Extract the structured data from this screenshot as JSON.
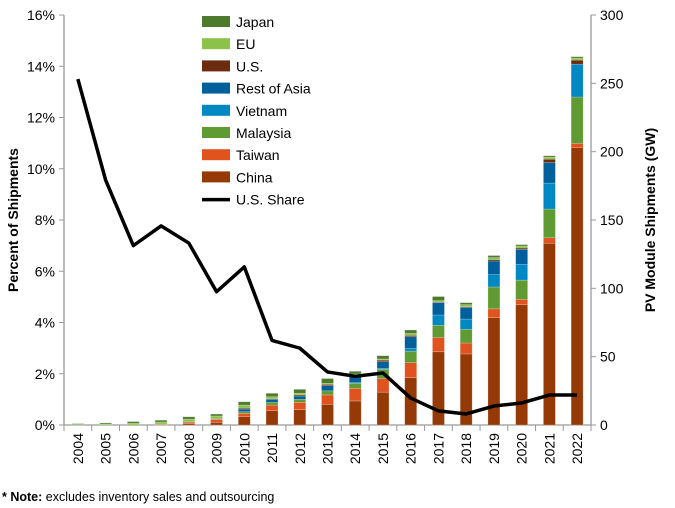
{
  "chart_data": {
    "type": "bar",
    "stacked": true,
    "categories": [
      "2004",
      "2005",
      "2006",
      "2007",
      "2008",
      "2009",
      "2010",
      "2011",
      "2012",
      "2013",
      "2014",
      "2015",
      "2016",
      "2017",
      "2018",
      "2019",
      "2020",
      "2021",
      "2022"
    ],
    "series": [
      {
        "name": "China",
        "axis": "right",
        "color": "#953A07",
        "values": [
          0,
          0,
          0,
          0.2,
          1,
          2,
          6.1,
          10.5,
          11.2,
          15.1,
          17.6,
          24,
          34.6,
          53.6,
          52,
          78.5,
          88,
          133,
          203
        ]
      },
      {
        "name": "Taiwan",
        "axis": "right",
        "color": "#E0531F",
        "values": [
          0,
          0,
          0,
          0.2,
          1,
          2,
          2.4,
          4.1,
          5.4,
          6.9,
          9.2,
          10,
          11,
          10.4,
          8,
          6.5,
          4,
          4,
          3
        ]
      },
      {
        "name": "Malaysia",
        "axis": "right",
        "color": "#5F9A33",
        "values": [
          0,
          0,
          0,
          0,
          0,
          0.5,
          1.2,
          2,
          2.2,
          3,
          3.7,
          6.7,
          8.4,
          9,
          10,
          16,
          14,
          21,
          34
        ]
      },
      {
        "name": "Vietnam",
        "axis": "right",
        "color": "#0088C3",
        "values": [
          0,
          0,
          0,
          0,
          0,
          0,
          0,
          0,
          0,
          0,
          0.5,
          0.8,
          2,
          7.5,
          7.5,
          9,
          11.5,
          19,
          24
        ]
      },
      {
        "name": "Rest of Asia",
        "axis": "right",
        "color": "#00609B",
        "values": [
          0,
          0,
          0,
          0,
          0,
          0,
          2,
          2.2,
          2.4,
          3.8,
          4.3,
          4.8,
          8.6,
          9,
          8.5,
          10,
          11,
          15,
          0
        ]
      },
      {
        "name": "U.S.",
        "axis": "right",
        "color": "#6B2B0E",
        "values": [
          0,
          0,
          0.1,
          0.2,
          0.3,
          0.3,
          0.7,
          0.4,
          0.8,
          1,
          0.7,
          1.2,
          1,
          0.5,
          0.5,
          1,
          1,
          2.5,
          3
        ]
      },
      {
        "name": "EU",
        "axis": "right",
        "color": "#8BC34A",
        "values": [
          0.4,
          0.7,
          1.2,
          1.6,
          2,
          1.8,
          2.2,
          1.5,
          1.2,
          0.7,
          1.3,
          0.8,
          1.4,
          1,
          1.5,
          1.5,
          1.5,
          1.5,
          1.5
        ]
      },
      {
        "name": "Japan",
        "axis": "right",
        "color": "#4E7A2E",
        "values": [
          0.6,
          0.8,
          1.2,
          1.3,
          1.7,
          1.4,
          2.4,
          2.5,
          2.9,
          3.5,
          2,
          2.4,
          2.5,
          3,
          1.5,
          1.5,
          1,
          1,
          1
        ]
      }
    ],
    "line_series": {
      "name": "U.S. Share",
      "axis": "left",
      "color": "#000000",
      "values": [
        13.5,
        9.56,
        7.0,
        7.77,
        7.1,
        5.2,
        6.17,
        3.3,
        3.0,
        2.07,
        1.9,
        2.03,
        1.05,
        0.55,
        0.43,
        0.74,
        0.86,
        1.17,
        1.17
      ]
    },
    "ylabel": "Percent of Shipments",
    "ylabel_right": "PV Module Shipments (GW)",
    "ylim": [
      0,
      16
    ],
    "ylim_right": [
      0,
      300
    ],
    "yticks": [
      "0%",
      "2%",
      "4%",
      "6%",
      "8%",
      "10%",
      "12%",
      "14%",
      "16%"
    ],
    "yticks_right": [
      "0",
      "50",
      "100",
      "150",
      "200",
      "250",
      "300"
    ],
    "legend_order": [
      "Japan",
      "EU",
      "U.S.",
      "Rest of Asia",
      "Vietnam",
      "Malaysia",
      "Taiwan",
      "China",
      "U.S. Share"
    ],
    "legend_position": "top-center",
    "grid": false
  },
  "note": {
    "label": "* Note:",
    "text": " excludes inventory sales and outsourcing"
  }
}
